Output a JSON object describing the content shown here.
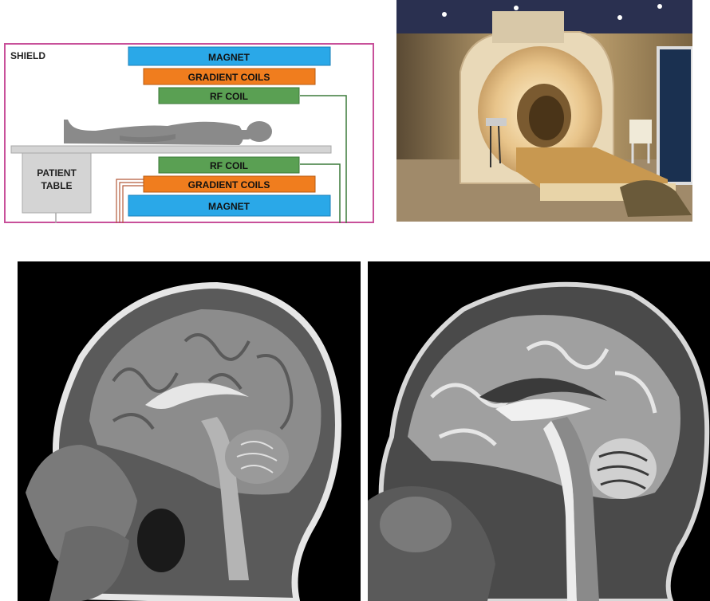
{
  "diagram": {
    "shield_label": "SHIELD",
    "patient_table_line1": "PATIENT",
    "patient_table_line2": "TABLE",
    "top_magnet": "MAGNET",
    "top_gradient": "GRADIENT COILS",
    "top_rf": "RF COIL",
    "bottom_rf": "RF COIL",
    "bottom_gradient": "GRADIENT COILS",
    "bottom_magnet": "MAGNET",
    "colors": {
      "shield": "#c8509a",
      "magnet": "#2aa8e8",
      "gradient": "#f07d1e",
      "rf": "#5aa053",
      "table": "#d4d4d4",
      "person": "#8a8a8a"
    }
  },
  "photo": {
    "subject": "mri-scanner-photo"
  },
  "scans": {
    "left": {
      "subject": "t1-sagittal-head-mri"
    },
    "right": {
      "subject": "t2-sagittal-head-mri"
    }
  }
}
